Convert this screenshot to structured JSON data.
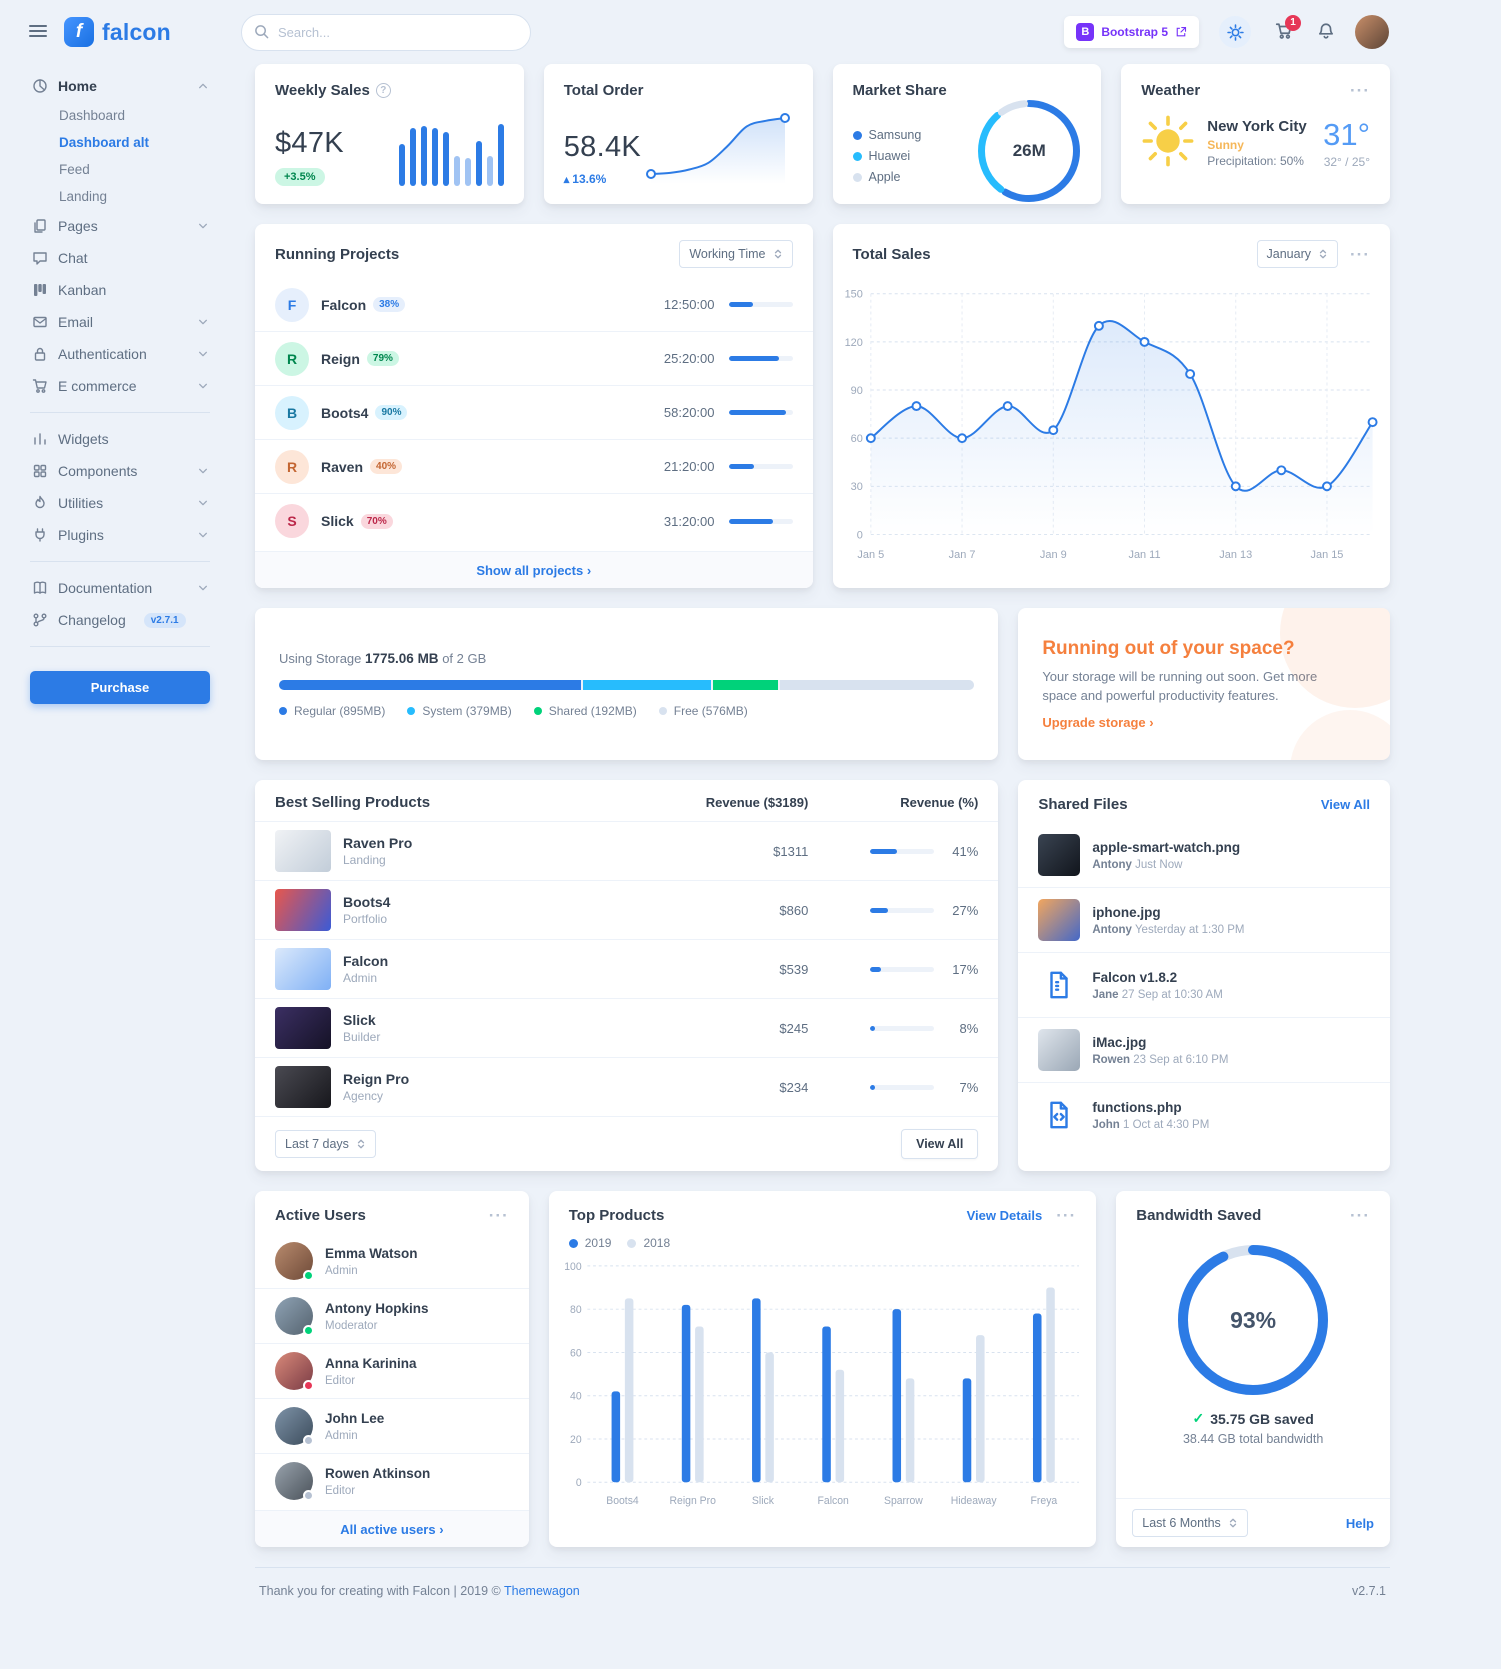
{
  "topbar": {
    "brand": "falcon",
    "search_placeholder": "Search...",
    "bootstrap_badge": "Bootstrap 5",
    "cart_count": "1"
  },
  "sidebar": {
    "items": [
      {
        "label": "Home"
      },
      {
        "label": "Dashboard"
      },
      {
        "label": "Dashboard alt"
      },
      {
        "label": "Feed"
      },
      {
        "label": "Landing"
      },
      {
        "label": "Pages"
      },
      {
        "label": "Chat"
      },
      {
        "label": "Kanban"
      },
      {
        "label": "Email"
      },
      {
        "label": "Authentication"
      },
      {
        "label": "E commerce"
      },
      {
        "label": "Widgets"
      },
      {
        "label": "Components"
      },
      {
        "label": "Utilities"
      },
      {
        "label": "Plugins"
      },
      {
        "label": "Documentation"
      },
      {
        "label": "Changelog"
      }
    ],
    "changelog_badge": "v2.7.1",
    "purchase_label": "Purchase"
  },
  "weekly_sales": {
    "title": "Weekly Sales",
    "value": "$47K",
    "delta": "+3.5%",
    "chart": {
      "type": "bar",
      "values": [
        42,
        58,
        60,
        58,
        54,
        30,
        28,
        45,
        30,
        62
      ],
      "color": "#2c7be5"
    }
  },
  "total_order": {
    "title": "Total Order",
    "value": "58.4K",
    "delta": "13.6%",
    "chart": {
      "type": "line",
      "values": [
        2,
        2.2,
        2.8,
        4,
        7,
        10.5,
        11.5,
        12
      ],
      "color": "#2c7be5"
    }
  },
  "market_share": {
    "title": "Market Share",
    "center_value": "26M",
    "legend": [
      {
        "label": "Samsung",
        "color": "#2c7be5",
        "share": 60
      },
      {
        "label": "Huawei",
        "color": "#27bcfd",
        "share": 30
      },
      {
        "label": "Apple",
        "color": "#d8e2ef",
        "share": 10
      }
    ]
  },
  "weather": {
    "title": "Weather",
    "city": "New York City",
    "condition": "Sunny",
    "precipitation": "Precipitation: 50%",
    "temp": "31°",
    "high_low": "32° / 25°"
  },
  "running_projects": {
    "title": "Running Projects",
    "select_value": "Working Time",
    "footer_link": "Show all projects",
    "projects": [
      {
        "initial": "F",
        "name": "Falcon",
        "percent": "38%",
        "time": "12:50:00",
        "progress": 38,
        "color": "#2c7be5",
        "bg": "#e6effc"
      },
      {
        "initial": "R",
        "name": "Reign",
        "percent": "79%",
        "time": "25:20:00",
        "progress": 79,
        "color": "#00864e",
        "bg": "#ccf6e4"
      },
      {
        "initial": "B",
        "name": "Boots4",
        "percent": "90%",
        "time": "58:20:00",
        "progress": 90,
        "color": "#1978a2",
        "bg": "#d8f2fe"
      },
      {
        "initial": "R",
        "name": "Raven",
        "percent": "40%",
        "time": "21:20:00",
        "progress": 40,
        "color": "#c46632",
        "bg": "#fde6d8"
      },
      {
        "initial": "S",
        "name": "Slick",
        "percent": "70%",
        "time": "31:20:00",
        "progress": 70,
        "color": "#bb2749",
        "bg": "#fad7dd"
      }
    ]
  },
  "total_sales": {
    "title": "Total Sales",
    "select_value": "January",
    "chart": {
      "type": "line",
      "x_labels": [
        "Jan 5",
        "Jan 7",
        "Jan 9",
        "Jan 11",
        "Jan 13",
        "Jan 15"
      ],
      "y_ticks": [
        0,
        30,
        60,
        90,
        120,
        150
      ],
      "values": [
        60,
        80,
        60,
        80,
        65,
        130,
        120,
        100,
        30,
        40,
        30,
        70
      ],
      "ylim": [
        0,
        150
      ],
      "color": "#2c7be5"
    }
  },
  "storage": {
    "title_prefix": "Using Storage",
    "used": "1775.06 MB",
    "total_suffix": "of 2 GB",
    "segments": [
      {
        "label": "Regular (895MB)",
        "mb": 895,
        "color": "#2c7be5"
      },
      {
        "label": "System (379MB)",
        "mb": 379,
        "color": "#27bcfd"
      },
      {
        "label": "Shared (192MB)",
        "mb": 192,
        "color": "#00d27a"
      },
      {
        "label": "Free (576MB)",
        "mb": 576,
        "color": "#d8e2ef"
      }
    ]
  },
  "space_warning": {
    "title": "Running out of your space?",
    "body": "Your storage will be running out soon. Get more space and powerful productivity features.",
    "link": "Upgrade storage"
  },
  "best_selling": {
    "title": "Best Selling Products",
    "col_revenue": "Revenue ($3189)",
    "col_percent": "Revenue (%)",
    "select_value": "Last 7 days",
    "view_all": "View All",
    "products": [
      {
        "name": "Raven Pro",
        "category": "Landing",
        "revenue": "$1311",
        "percent": "41%",
        "progress": 41
      },
      {
        "name": "Boots4",
        "category": "Portfolio",
        "revenue": "$860",
        "percent": "27%",
        "progress": 27
      },
      {
        "name": "Falcon",
        "category": "Admin",
        "revenue": "$539",
        "percent": "17%",
        "progress": 17
      },
      {
        "name": "Slick",
        "category": "Builder",
        "revenue": "$245",
        "percent": "8%",
        "progress": 8
      },
      {
        "name": "Reign Pro",
        "category": "Agency",
        "revenue": "$234",
        "percent": "7%",
        "progress": 7
      }
    ]
  },
  "shared_files": {
    "title": "Shared Files",
    "view_all": "View All",
    "files": [
      {
        "name": "apple-smart-watch.png",
        "user": "Antony",
        "time": "Just Now"
      },
      {
        "name": "iphone.jpg",
        "user": "Antony",
        "time": "Yesterday at 1:30 PM"
      },
      {
        "name": "Falcon v1.8.2",
        "user": "Jane",
        "time": "27 Sep at 10:30 AM"
      },
      {
        "name": "iMac.jpg",
        "user": "Rowen",
        "time": "23 Sep at 6:10 PM"
      },
      {
        "name": "functions.php",
        "user": "John",
        "time": "1 Oct at 4:30 PM"
      }
    ]
  },
  "active_users": {
    "title": "Active Users",
    "footer_link": "All active users",
    "users": [
      {
        "name": "Emma Watson",
        "role": "Admin",
        "status_color": "#00d27a"
      },
      {
        "name": "Antony Hopkins",
        "role": "Moderator",
        "status_color": "#00d27a"
      },
      {
        "name": "Anna Karinina",
        "role": "Editor",
        "status_color": "#e63757"
      },
      {
        "name": "John Lee",
        "role": "Admin",
        "status_color": "#b6c1d2"
      },
      {
        "name": "Rowen Atkinson",
        "role": "Editor",
        "status_color": "#b6c1d2"
      }
    ]
  },
  "top_products": {
    "title": "Top Products",
    "view_details": "View Details",
    "chart": {
      "type": "bar",
      "categories": [
        "Boots4",
        "Reign Pro",
        "Slick",
        "Falcon",
        "Sparrow",
        "Hideaway",
        "Freya"
      ],
      "series": [
        {
          "name": "2019",
          "color": "#2c7be5",
          "values": [
            42,
            82,
            85,
            72,
            80,
            48,
            78
          ]
        },
        {
          "name": "2018",
          "color": "#d8e2ef",
          "values": [
            85,
            72,
            60,
            52,
            48,
            68,
            90
          ]
        }
      ],
      "y_ticks": [
        0,
        20,
        40,
        60,
        80,
        100
      ],
      "ylim": [
        0,
        100
      ]
    }
  },
  "bandwidth": {
    "title": "Bandwidth Saved",
    "percent_label": "93%",
    "percent_value": 93,
    "saved": "35.75 GB saved",
    "total": "38.44 GB total bandwidth",
    "select_value": "Last 6 Months",
    "help": "Help"
  },
  "footer": {
    "left_text": "Thank you for creating with Falcon | 2019 © ",
    "brand_link": "Themewagon",
    "version": "v2.7.1"
  }
}
